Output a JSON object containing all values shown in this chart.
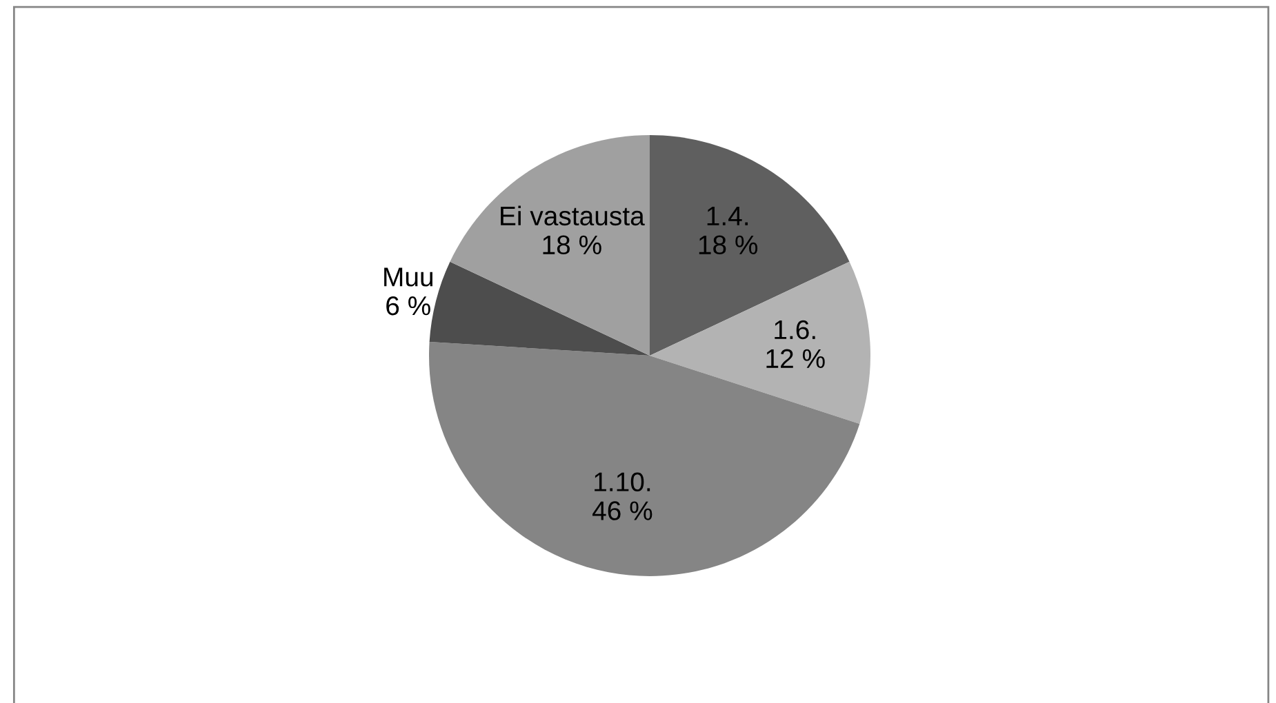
{
  "chart_data": {
    "type": "pie",
    "categories": [
      "1.4.",
      "1.6.",
      "1.10.",
      "Muu",
      "Ei vastausta"
    ],
    "values": [
      18,
      12,
      46,
      6,
      18
    ],
    "value_labels": [
      "18 %",
      "12 %",
      "46 %",
      "6 %",
      "18 %"
    ],
    "colors": [
      "#5f5f5f",
      "#b3b3b3",
      "#858585",
      "#4d4d4d",
      "#a0a0a0"
    ],
    "legend": false
  }
}
